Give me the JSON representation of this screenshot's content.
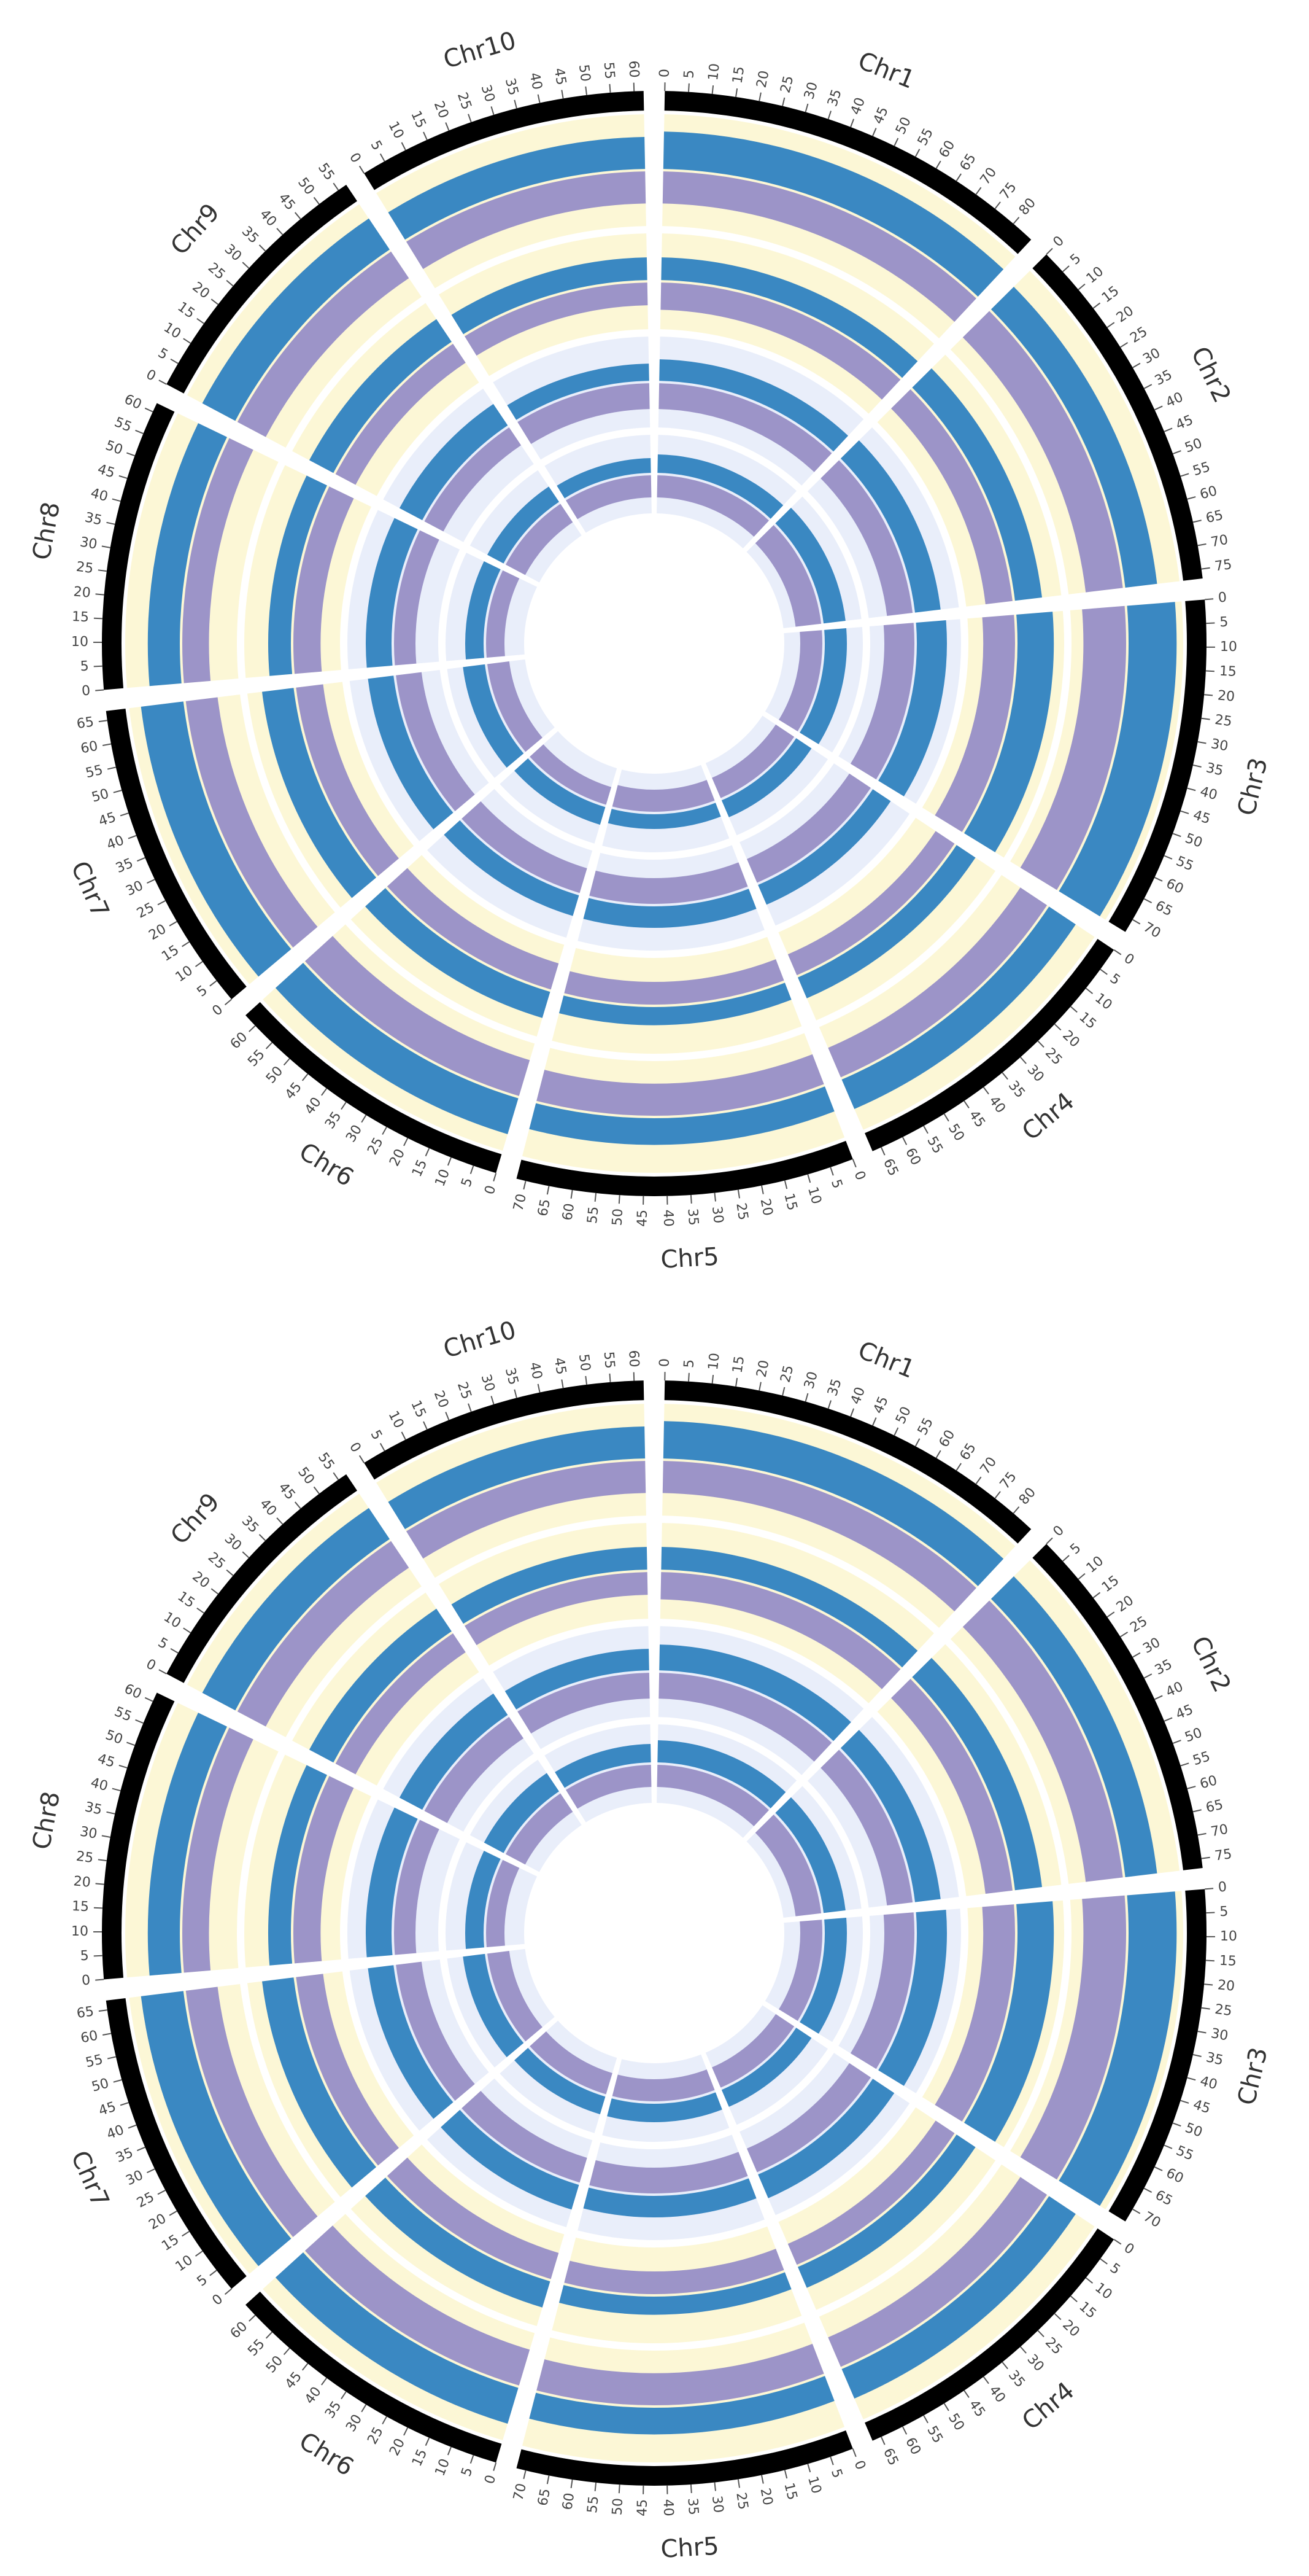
{
  "karyotype": [
    {
      "name": "Chr1",
      "length": 85,
      "ticks": [
        0,
        5,
        10,
        15,
        20,
        25,
        30,
        35,
        40,
        45,
        50,
        55,
        60,
        65,
        70,
        75,
        80
      ]
    },
    {
      "name": "Chr2",
      "length": 77,
      "ticks": [
        0,
        5,
        10,
        15,
        20,
        25,
        30,
        35,
        40,
        45,
        50,
        55,
        60,
        65,
        70,
        75
      ]
    },
    {
      "name": "Chr3",
      "length": 73,
      "ticks": [
        0,
        5,
        10,
        15,
        20,
        25,
        30,
        35,
        40,
        45,
        50,
        55,
        60,
        65,
        70
      ]
    },
    {
      "name": "Chr4",
      "length": 67,
      "ticks": [
        0,
        5,
        10,
        15,
        20,
        25,
        30,
        35,
        40,
        45,
        50,
        55,
        60,
        65
      ]
    },
    {
      "name": "Chr5",
      "length": 72,
      "ticks": [
        0,
        5,
        10,
        15,
        20,
        25,
        30,
        35,
        40,
        45,
        50,
        55,
        60,
        65,
        70
      ]
    },
    {
      "name": "Chr6",
      "length": 63,
      "ticks": [
        0,
        5,
        10,
        15,
        20,
        25,
        30,
        35,
        40,
        45,
        50,
        55,
        60
      ]
    },
    {
      "name": "Chr7",
      "length": 67,
      "ticks": [
        0,
        5,
        10,
        15,
        20,
        25,
        30,
        35,
        40,
        45,
        50,
        55,
        60,
        65
      ]
    },
    {
      "name": "Chr8",
      "length": 62,
      "ticks": [
        0,
        5,
        10,
        15,
        20,
        25,
        30,
        35,
        40,
        45,
        50,
        55,
        60
      ]
    },
    {
      "name": "Chr9",
      "length": 57,
      "ticks": [
        0,
        5,
        10,
        15,
        20,
        25,
        30,
        35,
        40,
        45,
        50,
        55
      ]
    },
    {
      "name": "Chr10",
      "length": 62,
      "ticks": [
        0,
        5,
        10,
        15,
        20,
        25,
        30,
        35,
        40,
        45,
        50,
        55,
        60
      ]
    }
  ],
  "plots": [
    {
      "tracks": [
        {
          "background": "#fcf7d6",
          "series": [
            {
              "color": "#3a88c2",
              "values": [
                0.7,
                0.6,
                0.9,
                0.6,
                0.5,
                0.7,
                0.8,
                0.6,
                0.7,
                0.6
              ]
            },
            {
              "color": "#9c94c8",
              "values": [
                0.6,
                0.7,
                0.8,
                0.6,
                0.6,
                0.7,
                0.6,
                0.5,
                0.6,
                0.6
              ]
            }
          ]
        },
        {
          "background": "#fcf7d6",
          "series": [
            {
              "color": "#3a88c2",
              "values": [
                0.5,
                0.6,
                0.8,
                0.5,
                0.4,
                0.6,
                0.7,
                0.5,
                0.6,
                0.5
              ]
            },
            {
              "color": "#9c94c8",
              "values": [
                0.6,
                0.6,
                0.7,
                0.5,
                0.5,
                0.6,
                0.6,
                0.6,
                0.5,
                0.5
              ]
            }
          ]
        },
        {
          "background": "#e9eefa",
          "series": [
            {
              "color": "#3a88c2",
              "values": [
                0.5,
                0.6,
                0.7,
                0.5,
                0.5,
                0.5,
                0.6,
                0.6,
                0.6,
                0.4
              ]
            },
            {
              "color": "#9c94c8",
              "values": [
                0.6,
                0.6,
                0.7,
                0.6,
                0.6,
                0.6,
                0.6,
                0.5,
                0.5,
                0.6
              ]
            }
          ]
        },
        {
          "background": "#e9eefa",
          "series": [
            {
              "color": "#3a88c2",
              "values": [
                0.5,
                0.6,
                0.6,
                0.5,
                0.4,
                0.5,
                0.6,
                0.5,
                0.5,
                0.4
              ]
            },
            {
              "color": "#9c94c8",
              "values": [
                0.6,
                0.7,
                0.6,
                0.6,
                0.6,
                0.5,
                0.6,
                0.5,
                0.6,
                0.6
              ]
            }
          ]
        }
      ]
    },
    {
      "tracks": [
        {
          "background": "#fcf7d6",
          "series": [
            {
              "color": "#3a88c2",
              "values": [
                0.7,
                0.6,
                0.9,
                0.6,
                0.5,
                0.7,
                0.8,
                0.6,
                0.7,
                0.6
              ]
            },
            {
              "color": "#9c94c8",
              "values": [
                0.6,
                0.7,
                0.8,
                0.6,
                0.6,
                0.7,
                0.6,
                0.5,
                0.6,
                0.6
              ]
            }
          ]
        },
        {
          "background": "#fcf7d6",
          "series": [
            {
              "color": "#3a88c2",
              "values": [
                0.5,
                0.6,
                0.8,
                0.5,
                0.4,
                0.6,
                0.7,
                0.5,
                0.6,
                0.5
              ]
            },
            {
              "color": "#9c94c8",
              "values": [
                0.6,
                0.6,
                0.7,
                0.5,
                0.5,
                0.6,
                0.6,
                0.6,
                0.5,
                0.5
              ]
            }
          ]
        },
        {
          "background": "#e9eefa",
          "series": [
            {
              "color": "#3a88c2",
              "values": [
                0.6,
                0.6,
                0.7,
                0.6,
                0.5,
                0.6,
                0.6,
                0.6,
                0.6,
                0.5
              ]
            },
            {
              "color": "#9c94c8",
              "values": [
                0.6,
                0.6,
                0.7,
                0.6,
                0.6,
                0.6,
                0.6,
                0.5,
                0.6,
                0.6
              ]
            }
          ]
        },
        {
          "background": "#e9eefa",
          "series": [
            {
              "color": "#3a88c2",
              "values": [
                0.6,
                0.6,
                0.6,
                0.5,
                0.5,
                0.5,
                0.6,
                0.5,
                0.6,
                0.5
              ]
            },
            {
              "color": "#9c94c8",
              "values": [
                0.6,
                0.7,
                0.6,
                0.6,
                0.6,
                0.6,
                0.6,
                0.5,
                0.6,
                0.6
              ]
            }
          ]
        }
      ]
    }
  ]
}
